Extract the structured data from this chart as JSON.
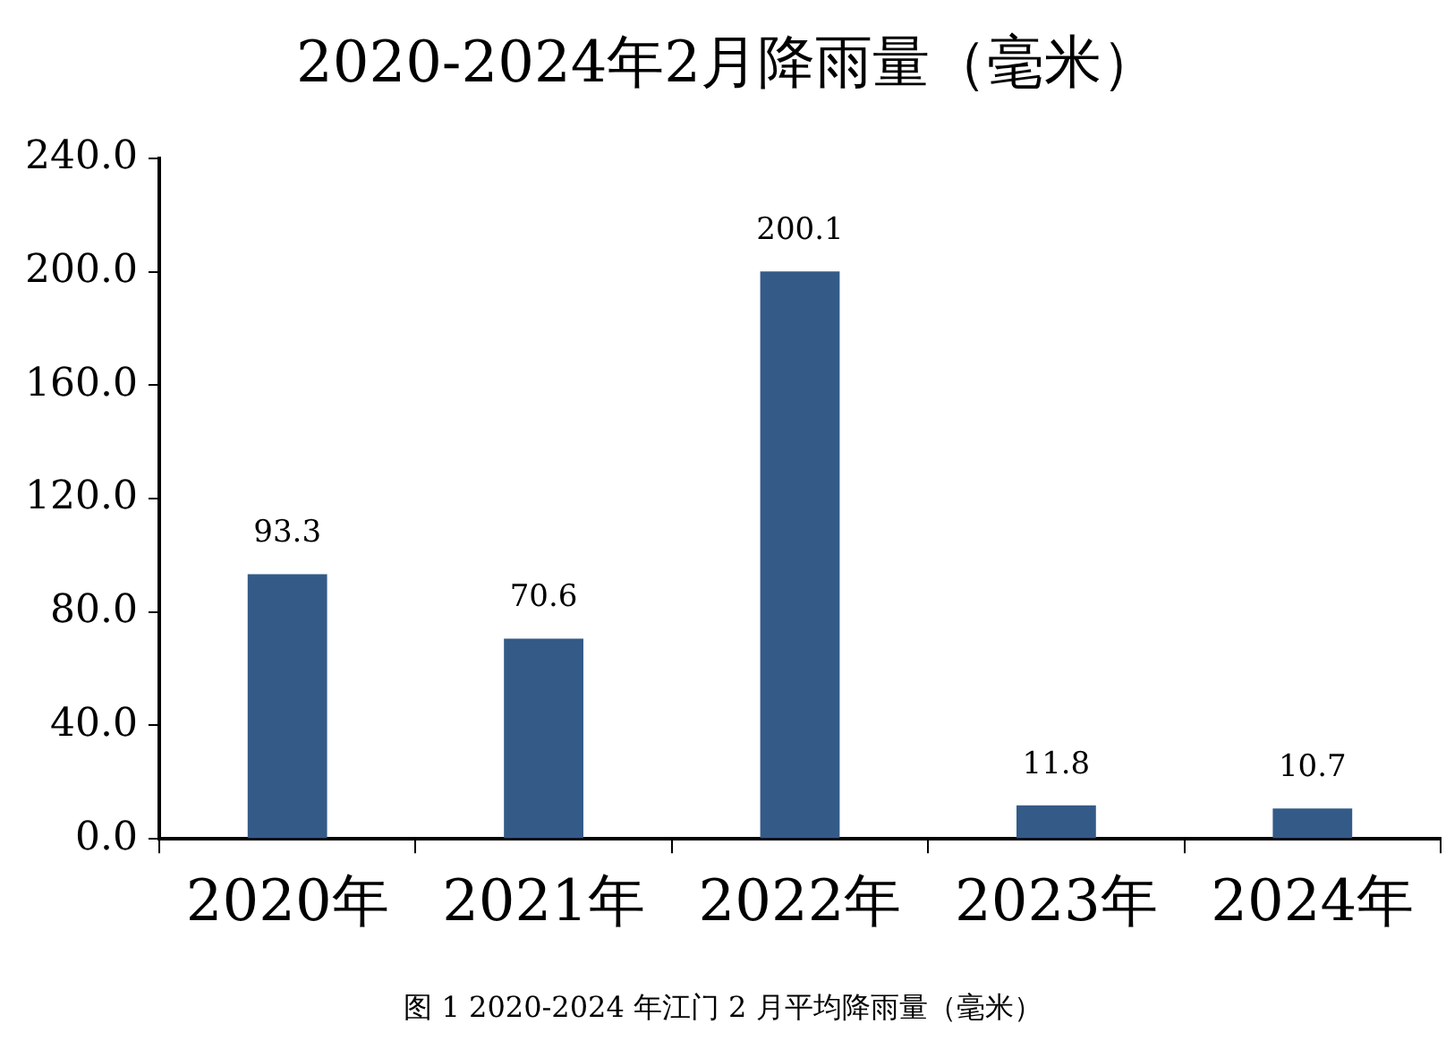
{
  "chart_data": {
    "type": "bar",
    "title": "2020-2024年2月降雨量（毫米）",
    "categories": [
      "2020年",
      "2021年",
      "2022年",
      "2023年",
      "2024年"
    ],
    "values": [
      93.3,
      70.6,
      200.1,
      11.8,
      10.7
    ],
    "color": "#345a88",
    "ylim": [
      0,
      240
    ],
    "yticks": [
      {
        "value": 0,
        "label": "0.0"
      },
      {
        "value": 40,
        "label": "40.0"
      },
      {
        "value": 80,
        "label": "80.0"
      },
      {
        "value": 120,
        "label": "120.0"
      },
      {
        "value": 160,
        "label": "160.0"
      },
      {
        "value": 200,
        "label": "200.0"
      },
      {
        "value": 240,
        "label": "240.0"
      }
    ],
    "grid": false,
    "legend": false,
    "data_labels": true,
    "annotations": [
      "图 1 2020-2024 年江门 2 月平均降雨量（毫米）"
    ]
  }
}
